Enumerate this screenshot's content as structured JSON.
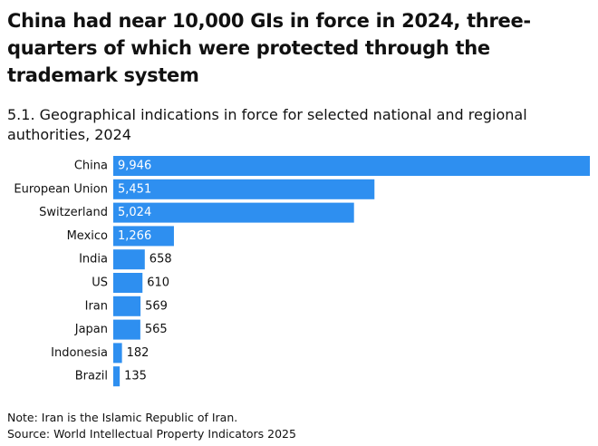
{
  "title": "China had near 10,000 GIs in force in 2024, three-quarters of which were protected through the trademark system",
  "subtitle": "5.1. Geographical indications in force for selected national and regional authorities, 2024",
  "note": "Note: Iran is the Islamic Republic of Iran.",
  "source": "Source: World Intellectual Property Indicators 2025",
  "colors": {
    "bar": "#2e8ff0",
    "label_inside": "#ffffff",
    "label_outside": "#111111"
  },
  "chart_data": {
    "type": "bar",
    "orientation": "horizontal",
    "title": "5.1. Geographical indications in force for selected national and regional authorities, 2024",
    "categories": [
      "China",
      "European Union",
      "Switzerland",
      "Mexico",
      "India",
      "US",
      "Iran",
      "Japan",
      "Indonesia",
      "Brazil"
    ],
    "values": [
      9946,
      5451,
      5024,
      1266,
      658,
      610,
      569,
      565,
      182,
      135
    ],
    "value_labels": [
      "9,946",
      "5,451",
      "5,024",
      "1,266",
      "658",
      "610",
      "569",
      "565",
      "182",
      "135"
    ],
    "xlim": [
      0,
      9946
    ],
    "grid": false,
    "legend": "none",
    "xlabel": "",
    "ylabel": ""
  }
}
